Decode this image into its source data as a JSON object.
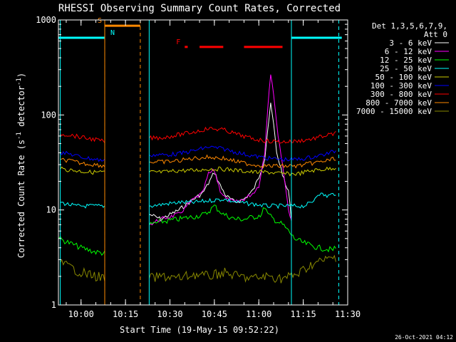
{
  "chart_data": {
    "type": "line",
    "title": "RHESSI Observing Summary Count Rates, Corrected",
    "xlabel": "Start Time (19-May-15 09:52:22)",
    "ylabel_parts": [
      "Corrected Count Rate (s",
      "-1",
      " detector",
      "-1",
      ")"
    ],
    "yscale": "log",
    "ylim": [
      1,
      1000
    ],
    "xlim": [
      "09:52:22",
      "11:30:00"
    ],
    "grid": false,
    "y_ticks": [
      {
        "value": 1,
        "label": "1"
      },
      {
        "value": 10,
        "label": "10"
      },
      {
        "value": 100,
        "label": "100"
      },
      {
        "value": 1000,
        "label": "1000"
      }
    ],
    "x_ticks": [
      {
        "time": "10:00",
        "label": "10:00"
      },
      {
        "time": "10:15",
        "label": "10:15"
      },
      {
        "time": "10:30",
        "label": "10:30"
      },
      {
        "time": "10:45",
        "label": "10:45"
      },
      {
        "time": "11:00",
        "label": "11:00"
      },
      {
        "time": "11:15",
        "label": "11:15"
      },
      {
        "time": "11:30",
        "label": "11:30"
      }
    ],
    "legend_header": [
      "Det 1,3,5,6,7,9,",
      "Att 0"
    ],
    "legend_position": "right",
    "series": [
      {
        "name": "3 - 6 keV",
        "color": "#ffffff",
        "points": [
          [
            "10:23",
            9
          ],
          [
            "10:27",
            8
          ],
          [
            "10:33",
            10
          ],
          [
            "10:38",
            13
          ],
          [
            "10:41",
            15
          ],
          [
            "10:43",
            19
          ],
          [
            "10:45",
            25
          ],
          [
            "10:47",
            18
          ],
          [
            "10:49",
            14
          ],
          [
            "10:52",
            12
          ],
          [
            "10:55",
            13
          ],
          [
            "10:58",
            16
          ],
          [
            "11:00",
            22
          ],
          [
            "11:02",
            35
          ],
          [
            "11:03",
            70
          ],
          [
            "11:04",
            128
          ],
          [
            "11:05",
            80
          ],
          [
            "11:06",
            40
          ],
          [
            "11:08",
            24
          ],
          [
            "11:09",
            18
          ],
          [
            "11:10",
            16
          ],
          [
            "11:11",
            8
          ]
        ]
      },
      {
        "name": "6 - 12 keV",
        "color": "#ff00ff",
        "points": [
          [
            "10:23",
            7
          ],
          [
            "10:27",
            8
          ],
          [
            "10:33",
            9
          ],
          [
            "10:38",
            13
          ],
          [
            "10:41",
            15
          ],
          [
            "10:43",
            24
          ],
          [
            "10:45",
            26
          ],
          [
            "10:47",
            16
          ],
          [
            "10:49",
            13
          ],
          [
            "10:52",
            12
          ],
          [
            "10:55",
            13
          ],
          [
            "10:58",
            15
          ],
          [
            "11:00",
            18
          ],
          [
            "11:02",
            40
          ],
          [
            "11:03",
            120
          ],
          [
            "11:04",
            280
          ],
          [
            "11:05",
            170
          ],
          [
            "11:06",
            80
          ],
          [
            "11:08",
            30
          ],
          [
            "11:09",
            18
          ],
          [
            "11:10",
            10
          ],
          [
            "11:11",
            8
          ]
        ]
      },
      {
        "name": "12 - 25 keV",
        "color": "#00ff00",
        "points": [
          [
            "09:52:30",
            5
          ],
          [
            "09:56",
            4.5
          ],
          [
            "10:00",
            4
          ],
          [
            "10:05",
            3.6
          ],
          [
            "10:08",
            3.5
          ],
          [
            "10:23",
            7
          ],
          [
            "10:27",
            7.5
          ],
          [
            "10:33",
            8
          ],
          [
            "10:38",
            8.5
          ],
          [
            "10:42",
            9
          ],
          [
            "10:45",
            11
          ],
          [
            "10:48",
            9
          ],
          [
            "10:52",
            8
          ],
          [
            "10:55",
            8
          ],
          [
            "10:59",
            8.5
          ],
          [
            "11:01",
            9
          ],
          [
            "11:02",
            11
          ],
          [
            "11:03",
            9
          ],
          [
            "11:05",
            8
          ],
          [
            "11:08",
            7
          ],
          [
            "11:09",
            6.5
          ],
          [
            "11:10",
            6
          ],
          [
            "11:12",
            5
          ],
          [
            "11:15",
            4.5
          ],
          [
            "11:20",
            4
          ],
          [
            "11:25",
            3.8
          ],
          [
            "11:26",
            4
          ]
        ]
      },
      {
        "name": "25 - 50 keV",
        "color": "#00ffff",
        "points": [
          [
            "09:53",
            12
          ],
          [
            "09:58",
            11
          ],
          [
            "10:03",
            11
          ],
          [
            "10:08",
            11
          ],
          [
            "10:23",
            11
          ],
          [
            "10:28",
            11.5
          ],
          [
            "10:33",
            12
          ],
          [
            "10:38",
            12
          ],
          [
            "10:43",
            12.5
          ],
          [
            "10:48",
            13
          ],
          [
            "10:53",
            12
          ],
          [
            "10:58",
            11.5
          ],
          [
            "11:03",
            11
          ],
          [
            "11:08",
            11
          ],
          [
            "11:10",
            11
          ],
          [
            "11:15",
            11
          ],
          [
            "11:18",
            12
          ],
          [
            "11:20",
            15
          ],
          [
            "11:23",
            14
          ],
          [
            "11:26",
            15
          ]
        ]
      },
      {
        "name": "50 - 100 keV",
        "color": "#cccc00",
        "points": [
          [
            "09:53",
            27
          ],
          [
            "09:58",
            26
          ],
          [
            "10:03",
            25
          ],
          [
            "10:08",
            25
          ],
          [
            "10:23",
            25
          ],
          [
            "10:28",
            25
          ],
          [
            "10:33",
            26
          ],
          [
            "10:38",
            26
          ],
          [
            "10:43",
            27
          ],
          [
            "10:48",
            27
          ],
          [
            "10:53",
            26
          ],
          [
            "10:58",
            25
          ],
          [
            "11:03",
            25
          ],
          [
            "11:08",
            24
          ],
          [
            "11:13",
            24
          ],
          [
            "11:18",
            26
          ],
          [
            "11:23",
            27
          ],
          [
            "11:26",
            28
          ]
        ]
      },
      {
        "name": "100 - 300 keV",
        "color": "#0000ff",
        "points": [
          [
            "09:53",
            40
          ],
          [
            "09:56",
            39
          ],
          [
            "10:00",
            36
          ],
          [
            "10:05",
            34
          ],
          [
            "10:08",
            33
          ],
          [
            "10:23",
            38
          ],
          [
            "10:28",
            38
          ],
          [
            "10:33",
            39
          ],
          [
            "10:38",
            42
          ],
          [
            "10:43",
            46
          ],
          [
            "10:48",
            44
          ],
          [
            "10:53",
            40
          ],
          [
            "10:58",
            37
          ],
          [
            "11:03",
            35
          ],
          [
            "11:08",
            34
          ],
          [
            "11:13",
            34
          ],
          [
            "11:18",
            36
          ],
          [
            "11:23",
            39
          ],
          [
            "11:26",
            42
          ]
        ]
      },
      {
        "name": "300 - 800 keV",
        "color": "#ff0000",
        "points": [
          [
            "09:53",
            63
          ],
          [
            "09:56",
            62
          ],
          [
            "10:00",
            58
          ],
          [
            "10:05",
            55
          ],
          [
            "10:08",
            52
          ],
          [
            "10:23",
            57
          ],
          [
            "10:28",
            58
          ],
          [
            "10:33",
            62
          ],
          [
            "10:38",
            66
          ],
          [
            "10:43",
            72
          ],
          [
            "10:48",
            70
          ],
          [
            "10:53",
            62
          ],
          [
            "10:58",
            56
          ],
          [
            "11:03",
            53
          ],
          [
            "11:08",
            52
          ],
          [
            "11:13",
            53
          ],
          [
            "11:18",
            56
          ],
          [
            "11:23",
            61
          ],
          [
            "11:26",
            64
          ]
        ]
      },
      {
        "name": "800 - 7000 keV",
        "color": "#ff8800",
        "points": [
          [
            "09:53",
            34
          ],
          [
            "09:56",
            33
          ],
          [
            "10:00",
            31
          ],
          [
            "10:05",
            30
          ],
          [
            "10:08",
            29
          ],
          [
            "10:23",
            32
          ],
          [
            "10:28",
            32
          ],
          [
            "10:33",
            33
          ],
          [
            "10:38",
            35
          ],
          [
            "10:43",
            36
          ],
          [
            "10:48",
            35
          ],
          [
            "10:53",
            32
          ],
          [
            "10:58",
            30
          ],
          [
            "11:03",
            29
          ],
          [
            "11:08",
            29
          ],
          [
            "11:13",
            29
          ],
          [
            "11:18",
            31
          ],
          [
            "11:23",
            33
          ],
          [
            "11:26",
            35
          ]
        ]
      },
      {
        "name": "7000 - 15000 keV",
        "color": "#888800",
        "points": [
          [
            "09:53",
            2.8
          ],
          [
            "09:56",
            2.5
          ],
          [
            "10:00",
            2.2
          ],
          [
            "10:05",
            2.0
          ],
          [
            "10:08",
            1.9
          ],
          [
            "10:23",
            1.9
          ],
          [
            "10:28",
            2.0
          ],
          [
            "10:33",
            1.9
          ],
          [
            "10:38",
            2.1
          ],
          [
            "10:43",
            2.0
          ],
          [
            "10:48",
            2.2
          ],
          [
            "10:53",
            2.0
          ],
          [
            "10:58",
            1.9
          ],
          [
            "11:03",
            2.0
          ],
          [
            "11:08",
            1.9
          ],
          [
            "11:13",
            2.1
          ],
          [
            "11:18",
            2.7
          ],
          [
            "11:23",
            3.0
          ],
          [
            "11:26",
            3.2
          ]
        ]
      }
    ],
    "state_bars": [
      {
        "label": "S",
        "color": "#ff8800",
        "start": "10:08",
        "end": "10:20",
        "level": 870
      },
      {
        "label": "N",
        "color": "#00ffff",
        "start": "09:52:22",
        "end": "10:08",
        "level": 650
      },
      {
        "label": "",
        "color": "#00ffff",
        "start": "11:11",
        "end": "11:28",
        "level": 650
      },
      {
        "label": "F",
        "color": "#ff0000",
        "start": "10:35",
        "end": "11:09",
        "level": 520,
        "segments": [
          [
            "10:35",
            "10:36"
          ],
          [
            "10:40",
            "10:48"
          ],
          [
            "10:55",
            "11:08"
          ]
        ]
      }
    ],
    "vlines": [
      {
        "time": "09:53",
        "color": "#00ffff",
        "style": "solid"
      },
      {
        "time": "10:08",
        "color": "#00ffff",
        "style": "dashed"
      },
      {
        "time": "10:08",
        "color": "#ff8800",
        "style": "solid"
      },
      {
        "time": "10:20",
        "color": "#ff8800",
        "style": "dashed"
      },
      {
        "time": "10:23",
        "color": "#00ffff",
        "style": "solid"
      },
      {
        "time": "11:11",
        "color": "#00ffff",
        "style": "solid"
      },
      {
        "time": "11:27",
        "color": "#00ffff",
        "style": "dashed"
      }
    ],
    "footer_date": "26-Oct-2021 04:12"
  }
}
